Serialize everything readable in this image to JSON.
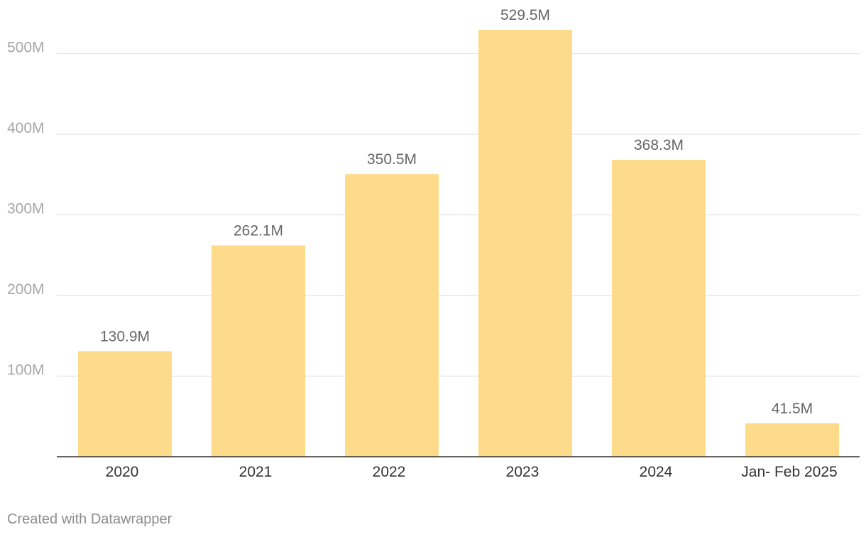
{
  "chart_data": {
    "type": "bar",
    "categories": [
      "2020",
      "2021",
      "2022",
      "2023",
      "2024",
      "Jan- Feb 2025"
    ],
    "values": [
      130.9,
      262.1,
      350.5,
      529.5,
      368.3,
      41.5
    ],
    "value_labels": [
      "130.9M",
      "262.1M",
      "350.5M",
      "529.5M",
      "368.3M",
      "41.5M"
    ],
    "y_ticks": [
      100,
      200,
      300,
      400,
      500
    ],
    "y_tick_labels": [
      "100M",
      "200M",
      "300M",
      "400M",
      "500M"
    ],
    "ylim": [
      0,
      560
    ],
    "grid": true,
    "legend": "none",
    "title": "",
    "xlabel": "",
    "ylabel": "",
    "colors": {
      "bar": "#fddb8a",
      "grid": "#e2e2e2",
      "axis": "#333333"
    }
  },
  "footer": {
    "credit": "Created with Datawrapper"
  }
}
